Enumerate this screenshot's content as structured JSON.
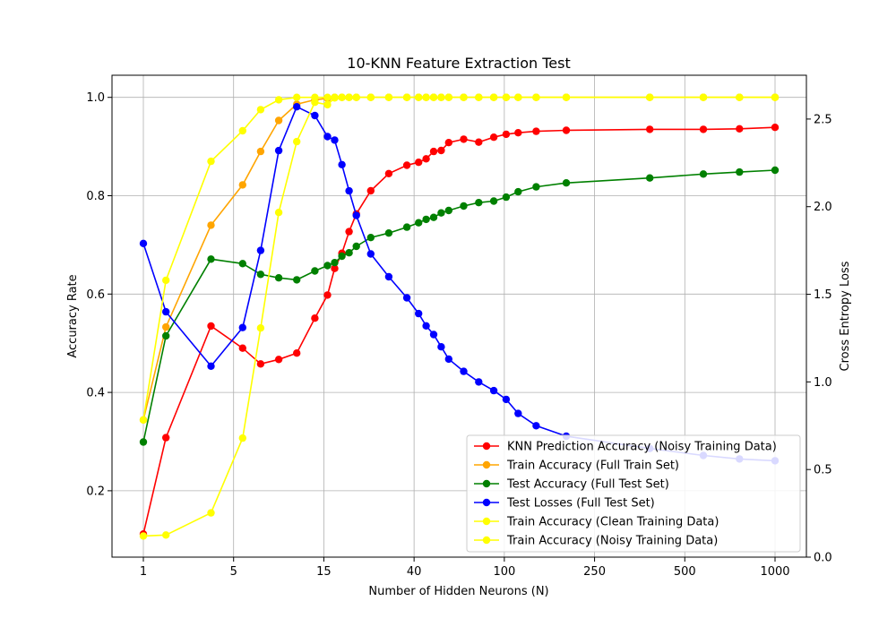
{
  "chart_data": {
    "type": "line",
    "title": "10-KNN Feature Extraction Test",
    "xlabel": "Number of Hidden Neurons (N)",
    "ylabel": "Accuracy Rate",
    "y2label": "Cross Entropy Loss",
    "x_ticks": [
      1,
      5,
      15,
      40,
      100,
      250,
      500,
      1000
    ],
    "y_ticks": [
      0.2,
      0.4,
      0.6,
      0.8,
      1.0
    ],
    "y2_ticks": [
      0.0,
      0.5,
      1.0,
      1.5,
      2.0,
      2.5
    ],
    "ylim": [
      0.065,
      1.045
    ],
    "y2lim": [
      0.0,
      2.75
    ],
    "grid": true,
    "legend_position": "bottom-right",
    "x": [
      1,
      2,
      4,
      6,
      8,
      10,
      12,
      14,
      16,
      18,
      20,
      22,
      24,
      28,
      33,
      38,
      43,
      48,
      53,
      58,
      63,
      73,
      83,
      93,
      103,
      123,
      153,
      203,
      403,
      603,
      803,
      1000
    ],
    "series": [
      {
        "name": "KNN Prediction Accuracy (Noisy Training Data)",
        "axis": "left",
        "color": "#ff0000",
        "values": [
          0.112,
          0.308,
          0.535,
          0.49,
          0.458,
          0.467,
          0.48,
          0.551,
          0.598,
          0.652,
          0.683,
          0.727,
          0.763,
          0.81,
          0.845,
          0.862,
          0.868,
          0.875,
          0.89,
          0.892,
          0.908,
          0.915,
          0.909,
          0.919,
          0.925,
          0.928,
          0.931,
          0.933,
          0.935,
          0.935,
          0.936,
          0.939
        ]
      },
      {
        "name": "Train Accuracy (Full Train Set)",
        "axis": "left",
        "color": "#ffa500",
        "values": [
          0.344,
          0.533,
          0.74,
          0.822,
          0.89,
          0.953,
          0.986,
          0.995,
          0.998,
          1.0,
          1.0,
          1.0,
          1.0,
          1.0,
          1.0,
          1.0,
          1.0,
          1.0,
          1.0,
          1.0,
          1.0,
          1.0,
          1.0,
          1.0,
          1.0,
          1.0,
          1.0,
          1.0,
          1.0,
          1.0,
          1.0,
          1.0
        ]
      },
      {
        "name": "Test Accuracy (Full Test Set)",
        "axis": "left",
        "color": "#008000",
        "values": [
          0.299,
          0.515,
          0.671,
          0.662,
          0.64,
          0.633,
          0.629,
          0.647,
          0.658,
          0.664,
          0.677,
          0.684,
          0.697,
          0.715,
          0.724,
          0.736,
          0.745,
          0.752,
          0.756,
          0.765,
          0.77,
          0.779,
          0.786,
          0.789,
          0.797,
          0.808,
          0.818,
          0.826,
          0.836,
          0.844,
          0.848,
          0.852
        ]
      },
      {
        "name": "Test Losses (Full Test Set)",
        "axis": "right",
        "color": "#0000ff",
        "values": [
          1.79,
          1.4,
          1.09,
          1.31,
          1.75,
          2.32,
          2.57,
          2.52,
          2.4,
          2.38,
          2.24,
          2.09,
          1.95,
          1.73,
          1.6,
          1.48,
          1.39,
          1.32,
          1.27,
          1.2,
          1.13,
          1.06,
          1.0,
          0.95,
          0.9,
          0.82,
          0.75,
          0.69,
          0.62,
          0.58,
          0.56,
          0.55
        ]
      },
      {
        "name": "Train Accuracy (Clean Training Data)",
        "axis": "left",
        "color": "#ffff00",
        "values": [
          0.344,
          0.628,
          0.87,
          0.932,
          0.975,
          0.995,
          1.0,
          1.0,
          1.0,
          1.0,
          1.0,
          1.0,
          1.0,
          1.0,
          1.0,
          1.0,
          1.0,
          1.0,
          1.0,
          1.0,
          1.0,
          1.0,
          1.0,
          1.0,
          1.0,
          1.0,
          1.0,
          1.0,
          1.0,
          1.0,
          1.0,
          1.0
        ]
      },
      {
        "name": "Train Accuracy (Noisy Training Data)",
        "axis": "left",
        "color": "#ffff00",
        "values": [
          0.108,
          0.11,
          0.155,
          0.307,
          0.531,
          0.766,
          0.91,
          0.99,
          0.985,
          0.999,
          1.0,
          1.0,
          1.0,
          1.0,
          1.0,
          1.0,
          1.0,
          1.0,
          1.0,
          1.0,
          1.0,
          1.0,
          1.0,
          1.0,
          1.0,
          1.0,
          1.0,
          1.0,
          1.0,
          1.0,
          1.0,
          1.0
        ]
      }
    ]
  }
}
